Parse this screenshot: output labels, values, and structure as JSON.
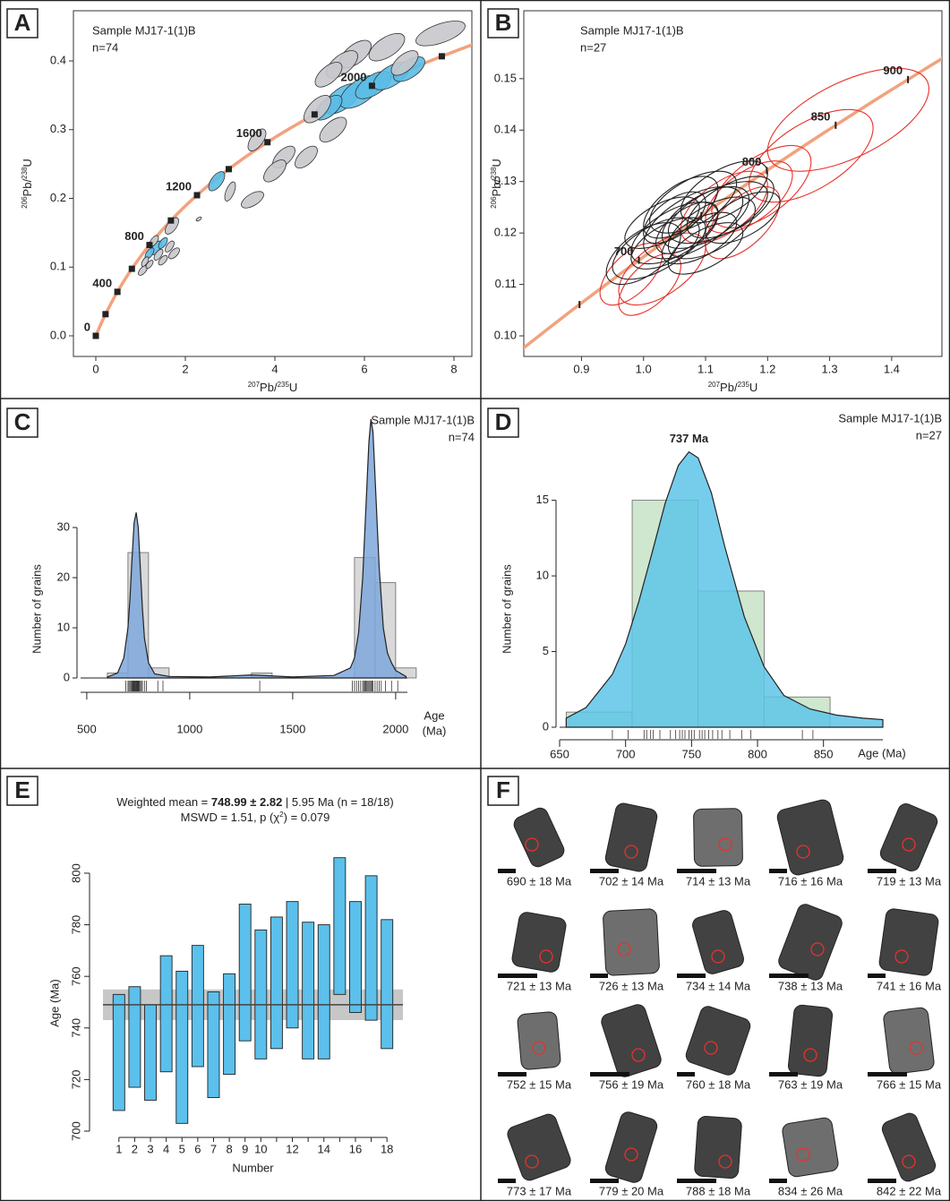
{
  "chart_data": [
    {
      "panel": "A",
      "type": "concordia",
      "title": "Sample MJ17-1(1)B",
      "subtitle": "n=74",
      "xlabel": [
        {
          "text": "207",
          "sup": true
        },
        {
          "text": "Pb/"
        },
        {
          "text": "235",
          "sup": true
        },
        {
          "text": "U"
        }
      ],
      "ylabel": [
        {
          "text": "206",
          "sup": true
        },
        {
          "text": "Pb/"
        },
        {
          "text": "238",
          "sup": true
        },
        {
          "text": "U"
        }
      ],
      "xlim": [
        -0.5,
        8.4
      ],
      "ylim": [
        -0.03,
        0.473
      ],
      "xticks": [
        0,
        2,
        4,
        6,
        8
      ],
      "yticks": [
        {
          "value": 0,
          "label": "0.0"
        },
        0.1,
        0.2,
        0.3,
        0.4
      ],
      "curve_color": "#f2a27e",
      "marker": "square",
      "age_markers": [
        0,
        200,
        400,
        600,
        800,
        1000,
        1200,
        1400,
        1600,
        1800,
        2000,
        2200
      ],
      "age_labels": [
        0,
        400,
        800,
        1200,
        1600,
        2000
      ],
      "series": [
        {
          "color": "#5bbde6",
          "filled": true,
          "x": [
            5.5,
            5.9,
            6.2,
            6.6,
            7.0,
            5.2,
            2.7,
            1.35,
            1.2,
            1.5
          ],
          "y": [
            0.345,
            0.355,
            0.365,
            0.378,
            0.388,
            0.332,
            0.225,
            0.128,
            0.12,
            0.135
          ],
          "x_err": [
            0.4,
            0.45,
            0.4,
            0.4,
            0.35,
            0.3,
            0.18,
            0.12,
            0.1,
            0.1
          ],
          "y_err": [
            0.022,
            0.024,
            0.02,
            0.02,
            0.018,
            0.018,
            0.014,
            0.01,
            0.008,
            0.008
          ]
        },
        {
          "color": "#c8c8cc",
          "filled": true,
          "x": [
            7.7,
            6.5,
            5.8,
            5.5,
            5.2,
            4.95,
            6.9,
            5.3,
            4.7,
            4.2,
            4.0,
            3.5,
            3.6,
            3.0,
            1.7,
            1.3,
            1.65,
            1.4,
            1.1,
            1.05,
            1.5,
            1.75,
            1.2,
            2.3
          ],
          "y": [
            0.44,
            0.42,
            0.41,
            0.395,
            0.38,
            0.33,
            0.397,
            0.3,
            0.26,
            0.26,
            0.24,
            0.198,
            0.285,
            0.21,
            0.16,
            0.138,
            0.13,
            0.118,
            0.108,
            0.095,
            0.11,
            0.12,
            0.104,
            0.17
          ],
          "x_err": [
            0.55,
            0.4,
            0.35,
            0.35,
            0.3,
            0.3,
            0.3,
            0.3,
            0.25,
            0.25,
            0.25,
            0.25,
            0.2,
            0.12,
            0.15,
            0.1,
            0.1,
            0.1,
            0.08,
            0.1,
            0.1,
            0.12,
            0.08,
            0.06
          ],
          "y_err": [
            0.018,
            0.02,
            0.02,
            0.02,
            0.018,
            0.02,
            0.018,
            0.018,
            0.016,
            0.016,
            0.016,
            0.012,
            0.016,
            0.014,
            0.012,
            0.008,
            0.008,
            0.008,
            0.007,
            0.007,
            0.007,
            0.008,
            0.006,
            0.003
          ]
        }
      ]
    },
    {
      "panel": "B",
      "type": "concordia",
      "title": "Sample MJ17-1(1)B",
      "subtitle": "n=27",
      "xlabel": [
        {
          "text": "207",
          "sup": true
        },
        {
          "text": "Pb/"
        },
        {
          "text": "235",
          "sup": true
        },
        {
          "text": "U"
        }
      ],
      "ylabel": [
        {
          "text": "206",
          "sup": true
        },
        {
          "text": "Pb/"
        },
        {
          "text": "238",
          "sup": true
        },
        {
          "text": "U"
        }
      ],
      "xlim": [
        0.807,
        1.481
      ],
      "ylim": [
        0.096,
        0.1632
      ],
      "xticks": [
        0.9,
        {
          "value": 1,
          "label": "1.0"
        },
        1.1,
        1.2,
        1.3,
        1.4
      ],
      "yticks": [
        {
          "value": 0.1,
          "label": "0.10"
        },
        0.11,
        0.12,
        0.13,
        0.14,
        0.15
      ],
      "curve_color": "#f2a27e",
      "marker": "tick",
      "age_markers": [
        650,
        700,
        750,
        800,
        850,
        900
      ],
      "age_labels": [
        700,
        800,
        850,
        900
      ],
      "series": [
        {
          "color": "#e8322a",
          "filled": false,
          "x": [
            1.33,
            1.27,
            1.19,
            1.17,
            1.03,
            0.98,
            1.01,
            1.13,
            1.16
          ],
          "y": [
            0.142,
            0.135,
            0.129,
            0.127,
            0.113,
            0.112,
            0.11,
            0.125,
            0.122
          ],
          "x_err": [
            0.13,
            0.1,
            0.08,
            0.07,
            0.07,
            0.05,
            0.05,
            0.07,
            0.06
          ],
          "y_err": [
            0.01,
            0.009,
            0.008,
            0.007,
            0.007,
            0.006,
            0.006,
            0.007,
            0.007
          ]
        },
        {
          "color": "#222222",
          "filled": false,
          "x": [
            1.05,
            1.08,
            1.1,
            1.12,
            1.06,
            1.04,
            1.02,
            1.09,
            1.11,
            1.14,
            1.07,
            1.03,
            1.0,
            1.13,
            1.08,
            1.16,
            1.05,
            1.1
          ],
          "y": [
            0.12,
            0.122,
            0.123,
            0.124,
            0.125,
            0.118,
            0.117,
            0.119,
            0.121,
            0.125,
            0.121,
            0.122,
            0.116,
            0.128,
            0.126,
            0.123,
            0.123,
            0.117
          ],
          "x_err": [
            0.07,
            0.08,
            0.07,
            0.08,
            0.06,
            0.06,
            0.07,
            0.06,
            0.07,
            0.07,
            0.05,
            0.06,
            0.06,
            0.07,
            0.07,
            0.06,
            0.05,
            0.06
          ],
          "y_err": [
            0.006,
            0.007,
            0.006,
            0.006,
            0.006,
            0.005,
            0.006,
            0.005,
            0.006,
            0.006,
            0.005,
            0.005,
            0.006,
            0.006,
            0.006,
            0.005,
            0.005,
            0.005
          ]
        }
      ]
    },
    {
      "panel": "C",
      "type": "histogram",
      "title": "Sample MJ17-1(1)B",
      "subtitle": "n=74",
      "bins": [
        600,
        700,
        800,
        900,
        1000,
        1100,
        1200,
        1300,
        1400,
        1500,
        1600,
        1700,
        1800,
        1900,
        2000,
        2100
      ],
      "counts": [
        1,
        25,
        2,
        0,
        0,
        0,
        0,
        1,
        0,
        0,
        0,
        0,
        24,
        19,
        2
      ],
      "bar_color": "#d9d9d9",
      "kde": {
        "x": [
          600,
          650,
          680,
          700,
          710,
          720,
          730,
          740,
          750,
          760,
          770,
          780,
          800,
          830,
          900,
          1100,
          1300,
          1500,
          1700,
          1780,
          1800,
          1820,
          1840,
          1860,
          1870,
          1880,
          1890,
          1900,
          1920,
          1940,
          1960,
          1980,
          2000,
          2050
        ],
        "y": [
          0.2,
          1,
          4,
          10,
          16,
          24,
          31,
          33,
          30,
          22,
          14,
          8,
          3,
          0.8,
          0.3,
          0.2,
          0.6,
          0.2,
          0.5,
          2,
          4,
          9,
          20,
          38,
          47,
          51.6,
          49,
          40,
          22,
          10,
          5,
          3,
          1.5,
          0.3
        ]
      },
      "kde_color": "#7ea7dc",
      "rug": [
        690,
        700,
        705,
        710,
        715,
        720,
        722,
        725,
        728,
        730,
        733,
        735,
        738,
        740,
        742,
        745,
        748,
        750,
        752,
        755,
        760,
        765,
        770,
        780,
        790,
        845,
        870,
        1340,
        1790,
        1800,
        1810,
        1820,
        1830,
        1840,
        1845,
        1850,
        1855,
        1860,
        1865,
        1870,
        1875,
        1880,
        1885,
        1890,
        1900,
        1910,
        1920,
        1930,
        1950,
        1980,
        2010
      ],
      "xlim": [
        470,
        2057
      ],
      "ylim": [
        0,
        55
      ],
      "xticks": [
        500,
        1000,
        1500,
        2000
      ],
      "yticks": [
        0,
        10,
        20,
        30
      ],
      "xlabel_lines": [
        "Age",
        "(Ma)"
      ],
      "ylabel": "Number of grains"
    },
    {
      "panel": "D",
      "type": "histogram",
      "title": "Sample MJ17-1(1)B",
      "subtitle": "n=27",
      "bins": [
        655,
        705,
        755,
        805,
        855
      ],
      "counts": [
        1,
        15,
        9,
        2
      ],
      "bar_color": "#cfe6cf",
      "kde": {
        "x": [
          655,
          670,
          690,
          700,
          710,
          720,
          730,
          740,
          748,
          755,
          765,
          775,
          790,
          805,
          820,
          840,
          860,
          880,
          895
        ],
        "y": [
          0.6,
          1.3,
          3.5,
          5.5,
          8.3,
          11.5,
          14.8,
          17.3,
          18.2,
          17.8,
          15.5,
          12,
          7.3,
          4,
          2.1,
          1.2,
          0.8,
          0.6,
          0.5
        ]
      },
      "kde_color": "#5ec4e8",
      "rug": [
        690,
        702,
        714,
        716,
        719,
        721,
        726,
        734,
        738,
        741,
        743,
        745,
        748,
        750,
        752,
        756,
        758,
        760,
        763,
        766,
        770,
        773,
        779,
        788,
        795,
        834,
        842
      ],
      "peak_label": "737 Ma",
      "xlim": [
        650,
        895
      ],
      "ylim": [
        0,
        19
      ],
      "xticks": [
        650,
        700,
        750,
        800,
        850
      ],
      "yticks": [
        0,
        5,
        10,
        15
      ],
      "xlabel": "Age (Ma)",
      "ylabel": "Number of grains"
    },
    {
      "panel": "E",
      "type": "errorbox",
      "title_lines": [
        [
          {
            "text": "Weighted mean = "
          },
          {
            "text": "748.99 ± 2.82",
            "bold": true
          },
          {
            "text": " | 5.95 Ma (n = 18/18)"
          }
        ],
        [
          {
            "text": "MSWD = 1.51, p (χ"
          },
          {
            "text": "2",
            "sup": true
          },
          {
            "text": ") = 0.079"
          }
        ]
      ],
      "categories": [
        "1",
        "2",
        "3",
        "4",
        "5",
        "6",
        "7",
        "8",
        "9",
        "10",
        null,
        "12",
        null,
        "14",
        null,
        "16",
        null,
        "18"
      ],
      "values": [
        730.5,
        736.5,
        730.5,
        745.5,
        732.5,
        748.5,
        733.5,
        741.5,
        761.5,
        753,
        757.5,
        764.5,
        754.5,
        754,
        779.5,
        767.5,
        771,
        757
      ],
      "errors": [
        22.5,
        19.5,
        18.5,
        22.5,
        29.5,
        23.5,
        20.5,
        19.5,
        26.5,
        25,
        25.5,
        24.5,
        26.5,
        26,
        26.5,
        21.5,
        28,
        25
      ],
      "color": "#5bc0eb",
      "weighted_mean": 748.99,
      "mean_error": 5.95,
      "band_color": "#bdbdbd",
      "ylim": [
        695,
        812
      ],
      "yticks": [
        700,
        720,
        740,
        760,
        780,
        800
      ],
      "xlabel": "Number",
      "ylabel": "Age (Ma)"
    }
  ],
  "zircon_panel": {
    "panel": "F",
    "captions": [
      "690 ± 18 Ma",
      "702 ± 14 Ma",
      "714 ± 13 Ma",
      "716 ± 16 Ma",
      "719 ± 13 Ma",
      "721 ± 13 Ma",
      "726 ± 13 Ma",
      "734 ± 14 Ma",
      "738 ± 13 Ma",
      "741 ± 16 Ma",
      "752 ± 15 Ma",
      "756 ± 19 Ma",
      "760 ± 18 Ma",
      "763 ± 19 Ma",
      "766 ± 15 Ma",
      "773 ± 17 Ma",
      "779 ± 20 Ma",
      "788 ± 18 Ma",
      "834 ± 26 Ma",
      "842 ± 22 Ma"
    ]
  }
}
